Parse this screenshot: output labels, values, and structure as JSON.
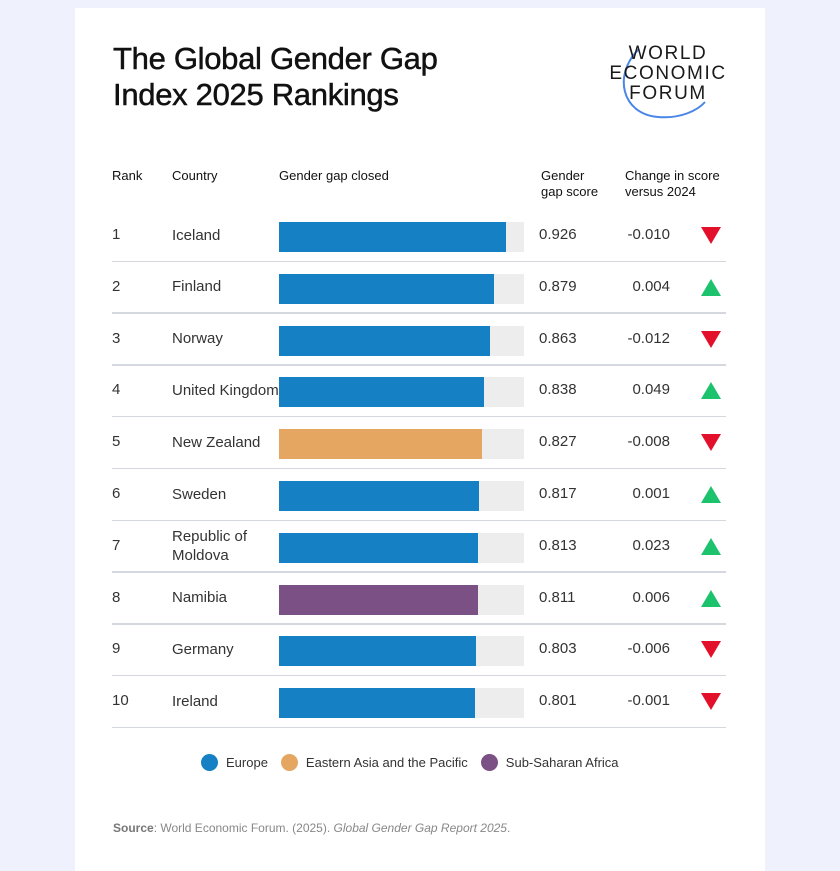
{
  "title_lines": [
    "The Global Gender Gap",
    "Index 2025 Rankings"
  ],
  "logo": {
    "lines": [
      "WORLD",
      "ECONOMIC",
      "FORUM"
    ],
    "arc_color": "#4a86e8"
  },
  "headers": {
    "rank": "Rank",
    "country": "Country",
    "bar": "Gender gap closed",
    "score_lines": [
      "Gender",
      "gap score"
    ],
    "change_lines": [
      "Change in score",
      "versus 2024"
    ]
  },
  "colors": {
    "Europe": "#1580c3",
    "Eastern Asia and the Pacific": "#e5a662",
    "Sub-Saharan Africa": "#7a5085",
    "up": "#1dc36c",
    "down": "#e3102b",
    "track": "#ededed"
  },
  "chart_data": {
    "type": "bar",
    "orientation": "horizontal",
    "title": "The Global Gender Gap Index 2025 Rankings",
    "xlim": [
      0,
      1
    ],
    "columns": [
      "Rank",
      "Country",
      "Gender gap closed",
      "Gender gap score",
      "Change in score versus 2024"
    ],
    "rows": [
      {
        "rank": "1",
        "country": "Iceland",
        "region": "Europe",
        "score": 0.926,
        "score_label": "0.926",
        "change": -0.01,
        "change_label": "-0.010",
        "direction": "down"
      },
      {
        "rank": "2",
        "country": "Finland",
        "region": "Europe",
        "score": 0.879,
        "score_label": "0.879",
        "change": 0.004,
        "change_label": "0.004",
        "direction": "up"
      },
      {
        "rank": "3",
        "country": "Norway",
        "region": "Europe",
        "score": 0.863,
        "score_label": "0.863",
        "change": -0.012,
        "change_label": "-0.012",
        "direction": "down"
      },
      {
        "rank": "4",
        "country": "United Kingdom",
        "region": "Europe",
        "score": 0.838,
        "score_label": "0.838",
        "change": 0.049,
        "change_label": "0.049",
        "direction": "up"
      },
      {
        "rank": "5",
        "country": "New Zealand",
        "region": "Eastern Asia and the Pacific",
        "score": 0.827,
        "score_label": "0.827",
        "change": -0.008,
        "change_label": "-0.008",
        "direction": "down"
      },
      {
        "rank": "6",
        "country": "Sweden",
        "region": "Europe",
        "score": 0.817,
        "score_label": "0.817",
        "change": 0.001,
        "change_label": "0.001",
        "direction": "up"
      },
      {
        "rank": "7",
        "country": "Republic of Moldova",
        "region": "Europe",
        "score": 0.813,
        "score_label": "0.813",
        "change": 0.023,
        "change_label": "0.023",
        "direction": "up"
      },
      {
        "rank": "8",
        "country": "Namibia",
        "region": "Sub-Saharan Africa",
        "score": 0.811,
        "score_label": "0.811",
        "change": 0.006,
        "change_label": "0.006",
        "direction": "up"
      },
      {
        "rank": "9",
        "country": "Germany",
        "region": "Europe",
        "score": 0.803,
        "score_label": "0.803",
        "change": -0.006,
        "change_label": "-0.006",
        "direction": "down"
      },
      {
        "rank": "10",
        "country": "Ireland",
        "region": "Europe",
        "score": 0.801,
        "score_label": "0.801",
        "change": -0.001,
        "change_label": "-0.001",
        "direction": "down"
      }
    ],
    "legend": [
      "Europe",
      "Eastern Asia and the Pacific",
      "Sub-Saharan Africa"
    ],
    "legend_position": "bottom-center"
  },
  "source": {
    "label": "Source",
    "text": ": World Economic Forum. (2025). ",
    "title": "Global Gender Gap Report 2025",
    "end": "."
  }
}
